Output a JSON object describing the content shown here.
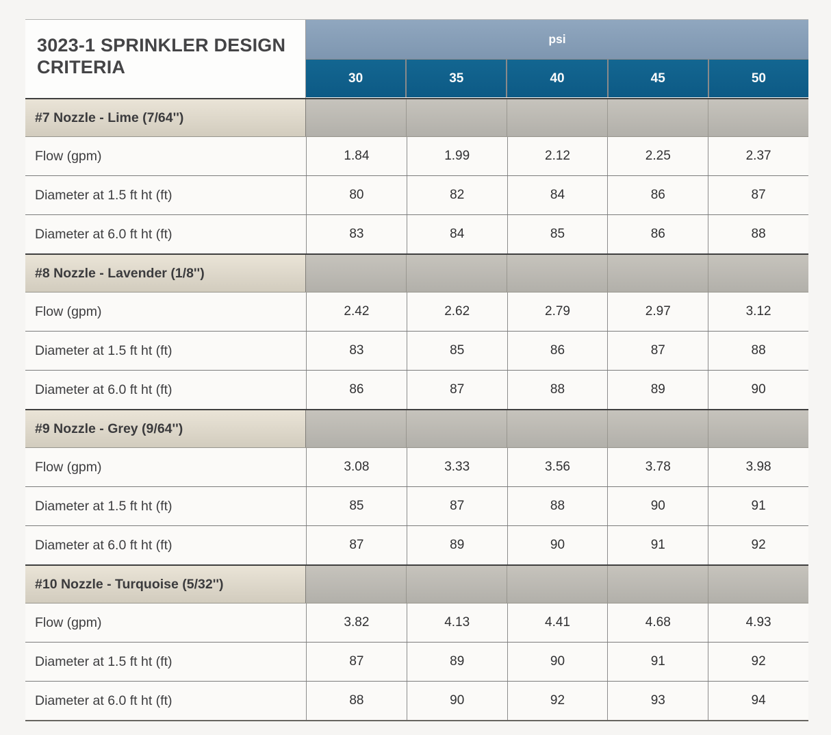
{
  "title": "3023-1 SPRINKLER DESIGN CRITERIA",
  "header": {
    "group_label": "psi",
    "columns": [
      "30",
      "35",
      "40",
      "45",
      "50"
    ]
  },
  "row_labels": [
    "Flow (gpm)",
    "Diameter at 1.5 ft ht (ft)",
    "Diameter at 6.0 ft ht (ft)"
  ],
  "sections": [
    {
      "name": "#7 Nozzle - Lime (7/64'')",
      "rows": [
        [
          "1.84",
          "1.99",
          "2.12",
          "2.25",
          "2.37"
        ],
        [
          "80",
          "82",
          "84",
          "86",
          "87"
        ],
        [
          "83",
          "84",
          "85",
          "86",
          "88"
        ]
      ]
    },
    {
      "name": "#8 Nozzle - Lavender (1/8'')",
      "rows": [
        [
          "2.42",
          "2.62",
          "2.79",
          "2.97",
          "3.12"
        ],
        [
          "83",
          "85",
          "86",
          "87",
          "88"
        ],
        [
          "86",
          "87",
          "88",
          "89",
          "90"
        ]
      ]
    },
    {
      "name": "#9 Nozzle - Grey (9/64'')",
      "rows": [
        [
          "3.08",
          "3.33",
          "3.56",
          "3.78",
          "3.98"
        ],
        [
          "85",
          "87",
          "88",
          "90",
          "91"
        ],
        [
          "87",
          "89",
          "90",
          "91",
          "92"
        ]
      ]
    },
    {
      "name": "#10 Nozzle - Turquoise (5/32'')",
      "rows": [
        [
          "3.82",
          "4.13",
          "4.41",
          "4.68",
          "4.93"
        ],
        [
          "87",
          "89",
          "90",
          "91",
          "92"
        ],
        [
          "88",
          "90",
          "92",
          "93",
          "94"
        ]
      ]
    }
  ],
  "colors": {
    "group_header_bg": "#869eb7",
    "column_header_bg": "#0f608c",
    "section_label_bg": "#ded8ca",
    "section_data_bg": "#bcbab3",
    "row_bg": "#fbfaf8",
    "page_bg": "#f6f5f3",
    "title_text": "#444446",
    "header_text": "#fdfdfd"
  }
}
